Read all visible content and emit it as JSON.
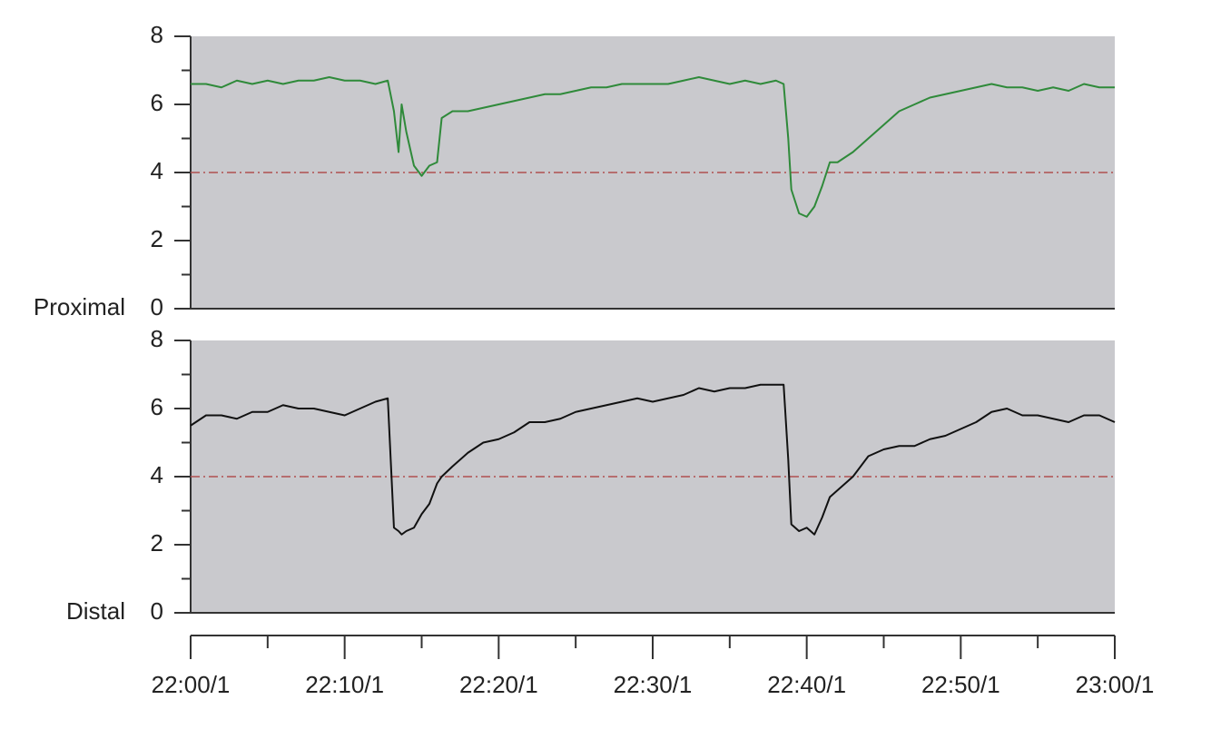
{
  "chart_data": [
    {
      "type": "line",
      "ylabel": "Proximal",
      "color": "#2f8a3a",
      "threshold": 4,
      "threshold_color": "#b05050",
      "x": [
        0,
        1,
        2,
        3,
        4,
        5,
        6,
        7,
        8,
        9,
        10,
        11,
        12,
        12.8,
        13.2,
        13.5,
        13.7,
        14,
        14.5,
        15,
        15.5,
        16,
        16.3,
        17,
        18,
        19,
        20,
        21,
        22,
        23,
        24,
        25,
        26,
        27,
        28,
        29,
        30,
        31,
        32,
        33,
        34,
        35,
        36,
        37,
        38,
        38.5,
        38.8,
        39,
        39.5,
        40,
        40.5,
        41,
        41.5,
        42,
        43,
        44,
        45,
        46,
        47,
        48,
        49,
        50,
        51,
        52,
        53,
        54,
        55,
        56,
        57,
        58,
        59,
        60
      ],
      "values": [
        6.6,
        6.6,
        6.5,
        6.7,
        6.6,
        6.7,
        6.6,
        6.7,
        6.7,
        6.8,
        6.7,
        6.7,
        6.6,
        6.7,
        5.8,
        4.6,
        6.0,
        5.2,
        4.2,
        3.9,
        4.2,
        4.3,
        5.6,
        5.8,
        5.8,
        5.9,
        6.0,
        6.1,
        6.2,
        6.3,
        6.3,
        6.4,
        6.5,
        6.5,
        6.6,
        6.6,
        6.6,
        6.6,
        6.7,
        6.8,
        6.7,
        6.6,
        6.7,
        6.6,
        6.7,
        6.6,
        5.0,
        3.5,
        2.8,
        2.7,
        3.0,
        3.6,
        4.3,
        4.3,
        4.6,
        5.0,
        5.4,
        5.8,
        6.0,
        6.2,
        6.3,
        6.4,
        6.5,
        6.6,
        6.5,
        6.5,
        6.4,
        6.5,
        6.4,
        6.6,
        6.5,
        6.5
      ],
      "xlim": [
        0,
        60
      ],
      "ylim": [
        0,
        8
      ],
      "yticks": [
        0,
        2,
        4,
        6,
        8
      ]
    },
    {
      "type": "line",
      "ylabel": "Distal",
      "color": "#111111",
      "threshold": 4,
      "threshold_color": "#b05050",
      "x": [
        0,
        1,
        2,
        3,
        4,
        5,
        6,
        7,
        8,
        9,
        10,
        11,
        12,
        12.8,
        13.2,
        13.5,
        13.7,
        14,
        14.5,
        15,
        15.5,
        16,
        16.3,
        17,
        18,
        19,
        20,
        21,
        22,
        23,
        24,
        25,
        26,
        27,
        28,
        29,
        30,
        31,
        32,
        33,
        34,
        35,
        36,
        37,
        38,
        38.5,
        38.8,
        39,
        39.5,
        40,
        40.5,
        41,
        41.5,
        42,
        43,
        44,
        45,
        46,
        47,
        48,
        49,
        50,
        51,
        52,
        53,
        54,
        55,
        56,
        57,
        58,
        59,
        60
      ],
      "values": [
        5.5,
        5.8,
        5.8,
        5.7,
        5.9,
        5.9,
        6.1,
        6.0,
        6.0,
        5.9,
        5.8,
        6.0,
        6.2,
        6.3,
        2.5,
        2.4,
        2.3,
        2.4,
        2.5,
        2.9,
        3.2,
        3.8,
        4.0,
        4.3,
        4.7,
        5.0,
        5.1,
        5.3,
        5.6,
        5.6,
        5.7,
        5.9,
        6.0,
        6.1,
        6.2,
        6.3,
        6.2,
        6.3,
        6.4,
        6.6,
        6.5,
        6.6,
        6.6,
        6.7,
        6.7,
        6.7,
        4.5,
        2.6,
        2.4,
        2.5,
        2.3,
        2.8,
        3.4,
        3.6,
        4.0,
        4.6,
        4.8,
        4.9,
        4.9,
        5.1,
        5.2,
        5.4,
        5.6,
        5.9,
        6.0,
        5.8,
        5.8,
        5.7,
        5.6,
        5.8,
        5.8,
        5.6
      ],
      "xlim": [
        0,
        60
      ],
      "ylim": [
        0,
        8
      ],
      "yticks": [
        0,
        2,
        4,
        6,
        8
      ],
      "xticks": [
        {
          "value": 0,
          "label": "22:00/1"
        },
        {
          "value": 10,
          "label": "22:10/1"
        },
        {
          "value": 20,
          "label": "22:20/1"
        },
        {
          "value": 30,
          "label": "22:30/1"
        },
        {
          "value": 40,
          "label": "22:40/1"
        },
        {
          "value": 50,
          "label": "22:50/1"
        },
        {
          "value": 60,
          "label": "23:00/1"
        }
      ]
    }
  ]
}
